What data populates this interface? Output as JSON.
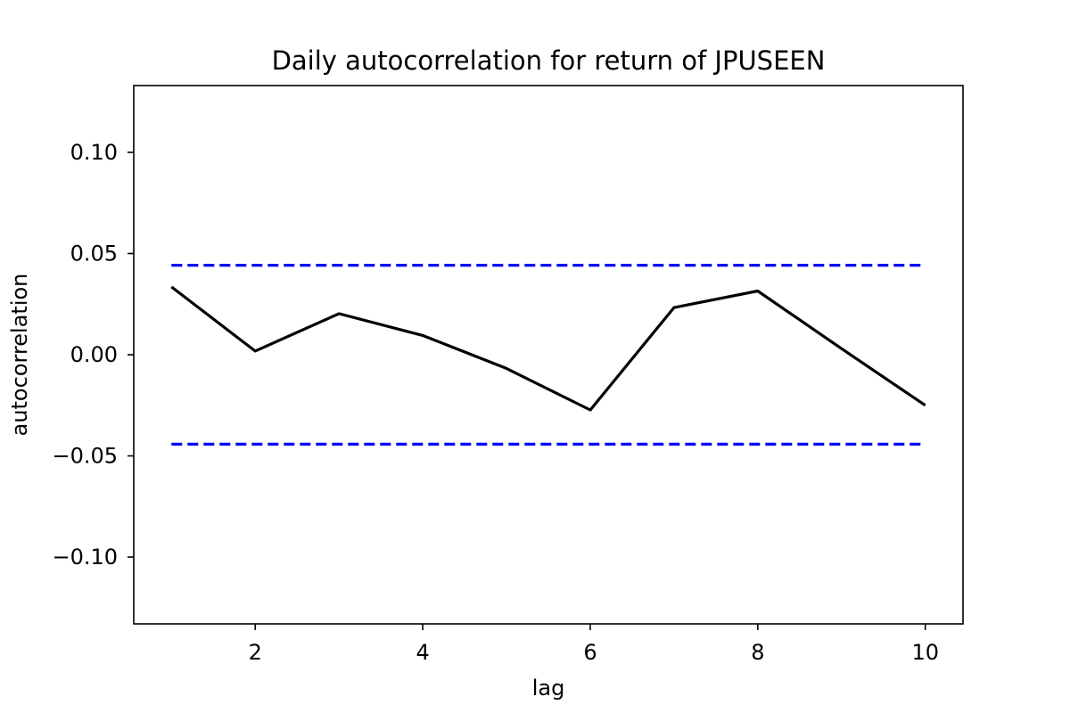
{
  "chart_data": {
    "type": "line",
    "title": "Daily autocorrelation for  return of JPUSEEN",
    "xlabel": "lag",
    "ylabel": "autocorrelation",
    "xlim": [
      0.55,
      10.45
    ],
    "ylim": [
      -0.133,
      0.133
    ],
    "x_ticks": [
      2,
      4,
      6,
      8,
      10
    ],
    "x_tick_labels": [
      "2",
      "4",
      "6",
      "8",
      "10"
    ],
    "y_ticks": [
      -0.1,
      -0.05,
      0.0,
      0.05,
      0.1
    ],
    "y_tick_labels": [
      "−0.10",
      "−0.05",
      "0.00",
      "0.05",
      "0.10"
    ],
    "grid": false,
    "series": [
      {
        "style": "solid",
        "color": "#000000",
        "x": [
          1,
          2,
          3,
          4,
          5,
          6,
          7,
          8,
          9,
          10
        ],
        "y": [
          0.0335,
          0.0018,
          0.0203,
          0.0095,
          -0.0068,
          -0.0273,
          0.0233,
          0.0315,
          0.003,
          -0.025
        ]
      },
      {
        "style": "dashed",
        "color": "#0000ff",
        "x": [
          1,
          10
        ],
        "y": [
          0.0442,
          0.0442
        ]
      },
      {
        "style": "dashed",
        "color": "#0000ff",
        "x": [
          1,
          10
        ],
        "y": [
          -0.0442,
          -0.0442
        ]
      }
    ]
  }
}
